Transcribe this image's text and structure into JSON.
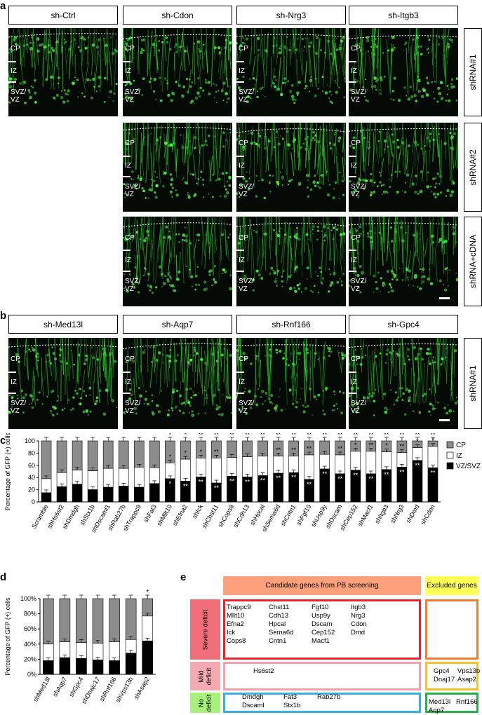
{
  "panels": {
    "a": "a",
    "b": "b",
    "c": "c",
    "d": "d",
    "e": "e"
  },
  "panel_a": {
    "columns": [
      "sh-Ctrl",
      "sh-Cdon",
      "sh-Nrg3",
      "sh-Itgb3"
    ],
    "rows": [
      "shRNA#1",
      "shRNA#2",
      "shRNA+cDNA"
    ],
    "layer_labels": {
      "cp": "CP",
      "iz": "IZ",
      "svz": "SVZ/\nVZ"
    }
  },
  "panel_b": {
    "columns": [
      "sh-Med13l",
      "sh-Aqp7",
      "sh-Rnf166",
      "sh-Gpc4"
    ],
    "rows": [
      "shRNA#1"
    ]
  },
  "chart_data": [
    {
      "type": "bar",
      "stacked": true,
      "ylabel": "Percentage of GFP (+) cells",
      "ylim": [
        0,
        100
      ],
      "yticks": [
        "0",
        "20",
        "40",
        "60",
        "80",
        "100"
      ],
      "legend": [
        "CP",
        "IZ",
        "VZ/SVZ"
      ],
      "legend_position": "right",
      "colors": {
        "CP": "#8c8c8c",
        "IZ": "#ffffff",
        "VZ/SVZ": "#000000"
      },
      "categories": [
        "Scramble",
        "shHs6st2",
        "shDmdgh",
        "shStx1b",
        "shDscaml1",
        "shRab27b",
        "shTrappc9",
        "shFat3",
        "shMllt10",
        "shEfna2",
        "shIck",
        "shChst11",
        "shCops8",
        "shCdh13",
        "shHpcal",
        "shSema6d",
        "shCntn1",
        "shFgf10",
        "shUsp9y",
        "shDscam",
        "shCep152",
        "shMacf1",
        "shItgb3",
        "shNrg3",
        "shDmd",
        "shCdon"
      ],
      "vz_svz": [
        15,
        25,
        29,
        20,
        24,
        26,
        24,
        30,
        38,
        34,
        41,
        31,
        42,
        41,
        43,
        47,
        48,
        37,
        54,
        46,
        52,
        46,
        53,
        57,
        68,
        56
      ],
      "iz": [
        23,
        23,
        23,
        31,
        31,
        29,
        33,
        26,
        26,
        36,
        31,
        41,
        31,
        33,
        32,
        28,
        27,
        40,
        24,
        31,
        31,
        37,
        29,
        24,
        21,
        35
      ],
      "stars": [
        "",
        "",
        "",
        "",
        "",
        "",
        "",
        "",
        "* / * / *",
        "* / * / **",
        "** / * / **",
        "** / ** / **",
        "** / / **",
        "** / / **",
        "** / / **",
        "** / ** / **",
        "** / ** / **",
        "** / ** / **",
        "** / / **",
        "** / ** / **",
        "** / * / **",
        "** / ** / **",
        "** / * / **",
        "** / ** / **",
        "** / * / **",
        "** / * / **"
      ]
    },
    {
      "type": "bar",
      "stacked": true,
      "ylabel": "Percentage of GFP (+) cells",
      "ylim": [
        0,
        100
      ],
      "yticks": [
        "0%",
        "20%",
        "40%",
        "60%",
        "80%",
        "100%"
      ],
      "categories": [
        "shMed13l",
        "shAqp7",
        "shGpc4",
        "shDnajc17",
        "shRnf166",
        "shVps13b",
        "shAsap2"
      ],
      "vz_svz": [
        18,
        22,
        21,
        19,
        18,
        28,
        44
      ],
      "iz": [
        22,
        21,
        21,
        22,
        25,
        18,
        33
      ],
      "stars": [
        "",
        "",
        "",
        "",
        "",
        "",
        "*"
      ]
    }
  ],
  "panel_e": {
    "head_candidate": "Candidate genes from PB screening",
    "head_excluded": "Excluded genes",
    "rows": [
      {
        "label": "Severe deficit",
        "cols": [
          "Trappc9\nMllt10\nEfna2\nIck\nCops8",
          "Chst11\nCdh13\nHpcal\nSema6d\nCntn1",
          "Fgf10\nUsp9y\nDscam\nCep152\nMacf1",
          "Itgb3\nNrg3\nCdon\nDmd"
        ],
        "excluded": ""
      },
      {
        "label": "Mild\ndeficit",
        "cols": [
          "Hs6st2"
        ],
        "excluded_cols": [
          "Gpc4\nDnaj17",
          "Vps13b\nAsap2"
        ]
      },
      {
        "label": "No\ndeficit",
        "cols": [
          "Dmdgh\nDscaml",
          "Fat3\nStx1b",
          "Rab27b"
        ],
        "excluded_cols": [
          "Med13l\nAqp7",
          "Rnf166"
        ]
      }
    ]
  }
}
